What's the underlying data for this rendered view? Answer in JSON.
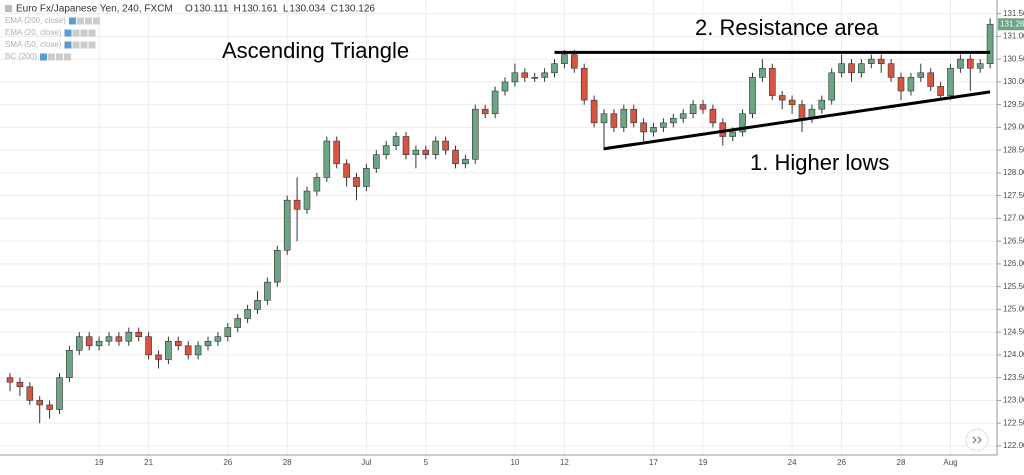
{
  "header": {
    "symbol": "Euro Fx/Japanese Yen, 240, FXCM",
    "ohlc": [
      {
        "label": "O",
        "value": 130.111
      },
      {
        "label": "H",
        "value": 130.161
      },
      {
        "label": "L",
        "value": 130.034
      },
      {
        "label": "C",
        "value": 130.126
      }
    ],
    "indicators": [
      "EMA (200, close)",
      "EMA (20, close)",
      "SMA (50, close)",
      "BC (200)"
    ]
  },
  "chart_data": {
    "type": "candlestick",
    "annotations": [
      "Ascending Triangle",
      "2. Resistance area",
      "1. Higher lows"
    ],
    "trend_lines": [
      {
        "x": [
          55,
          99
        ],
        "y": [
          130.65,
          130.65
        ]
      },
      {
        "x": [
          60,
          99
        ],
        "y": [
          128.53,
          129.78
        ]
      }
    ],
    "categories": [
      null,
      null,
      null,
      null,
      null,
      null,
      null,
      null,
      null,
      "19",
      null,
      null,
      null,
      null,
      "21",
      null,
      null,
      null,
      null,
      null,
      null,
      null,
      "26",
      null,
      null,
      null,
      null,
      null,
      "28",
      null,
      null,
      null,
      null,
      null,
      null,
      null,
      "Jul",
      null,
      null,
      null,
      null,
      null,
      "5",
      null,
      null,
      null,
      null,
      null,
      null,
      null,
      null,
      "10",
      null,
      null,
      null,
      null,
      "12",
      null,
      null,
      null,
      null,
      null,
      null,
      null,
      null,
      "17",
      null,
      null,
      null,
      null,
      "19",
      null,
      null,
      null,
      null,
      null,
      null,
      null,
      null,
      "24",
      null,
      null,
      null,
      null,
      "26",
      null,
      null,
      null,
      null,
      null,
      "28",
      null,
      null,
      null,
      null,
      "Aug",
      null,
      null,
      null,
      null
    ],
    "open": [
      123.5,
      123.4,
      123.3,
      123.0,
      122.9,
      122.8,
      123.5,
      124.1,
      124.4,
      124.2,
      124.3,
      124.4,
      124.3,
      124.5,
      124.4,
      124.0,
      123.9,
      124.3,
      124.2,
      124.0,
      124.2,
      124.3,
      124.4,
      124.6,
      124.8,
      125.0,
      125.2,
      125.6,
      126.3,
      127.4,
      127.2,
      127.6,
      127.9,
      128.7,
      128.2,
      127.9,
      127.7,
      128.1,
      128.4,
      128.6,
      128.8,
      128.4,
      128.5,
      128.4,
      128.7,
      128.5,
      128.2,
      128.3,
      129.4,
      129.3,
      129.8,
      130.0,
      130.2,
      130.1,
      130.1,
      130.2,
      130.4,
      130.6,
      130.3,
      129.6,
      129.1,
      129.3,
      129.0,
      129.4,
      129.1,
      128.9,
      129.0,
      129.1,
      129.2,
      129.3,
      129.5,
      129.4,
      129.1,
      128.8,
      128.9,
      129.3,
      130.1,
      130.3,
      129.7,
      129.6,
      129.5,
      129.2,
      129.4,
      129.6,
      130.2,
      130.4,
      130.2,
      130.4,
      130.5,
      130.4,
      130.1,
      129.8,
      130.1,
      130.2,
      129.9,
      129.7,
      130.3,
      130.5,
      130.3,
      130.4
    ],
    "high": [
      123.6,
      123.5,
      123.4,
      123.1,
      123.0,
      123.6,
      124.2,
      124.5,
      124.5,
      124.4,
      124.5,
      124.5,
      124.6,
      124.6,
      124.5,
      124.1,
      124.4,
      124.4,
      124.3,
      124.3,
      124.4,
      124.5,
      124.7,
      124.9,
      125.1,
      125.4,
      125.7,
      126.4,
      127.5,
      127.9,
      127.7,
      128.0,
      128.8,
      128.8,
      128.3,
      128.0,
      128.2,
      128.5,
      128.7,
      128.9,
      128.9,
      128.6,
      128.6,
      128.8,
      128.8,
      128.6,
      128.4,
      129.5,
      129.5,
      129.9,
      130.1,
      130.4,
      130.3,
      130.2,
      130.3,
      130.5,
      130.7,
      130.7,
      130.4,
      129.7,
      129.4,
      129.4,
      129.5,
      129.5,
      129.2,
      129.1,
      129.2,
      129.3,
      129.4,
      129.6,
      129.6,
      129.5,
      129.2,
      129.0,
      129.4,
      130.2,
      130.5,
      130.4,
      129.8,
      129.7,
      129.6,
      129.5,
      129.7,
      130.3,
      130.6,
      130.5,
      130.5,
      130.6,
      130.6,
      130.5,
      130.2,
      130.2,
      130.4,
      130.3,
      130.0,
      130.4,
      130.6,
      130.6,
      130.5,
      131.4
    ],
    "low": [
      123.2,
      123.1,
      122.9,
      122.5,
      122.6,
      122.7,
      123.4,
      124.0,
      124.1,
      124.1,
      124.2,
      124.2,
      124.2,
      124.3,
      123.9,
      123.7,
      123.8,
      124.1,
      123.9,
      123.9,
      124.1,
      124.2,
      124.3,
      124.5,
      124.7,
      124.9,
      125.1,
      125.5,
      126.2,
      126.5,
      127.1,
      127.5,
      127.8,
      128.1,
      127.7,
      127.4,
      127.6,
      128.0,
      128.3,
      128.5,
      128.3,
      128.1,
      128.3,
      128.3,
      128.4,
      128.1,
      128.1,
      128.2,
      129.2,
      129.2,
      129.7,
      129.9,
      130.0,
      130.0,
      130.0,
      130.1,
      130.3,
      130.2,
      129.5,
      129.0,
      128.5,
      128.9,
      128.9,
      129.0,
      128.7,
      128.8,
      128.9,
      129.0,
      129.1,
      129.2,
      129.3,
      129.0,
      128.6,
      128.7,
      128.8,
      129.2,
      130.0,
      129.6,
      129.4,
      129.3,
      128.9,
      129.1,
      129.3,
      129.5,
      130.1,
      130.0,
      130.1,
      130.3,
      130.2,
      130.0,
      129.6,
      129.7,
      130.0,
      129.8,
      129.6,
      129.6,
      130.2,
      129.8,
      130.2,
      130.3
    ],
    "close": [
      123.4,
      123.3,
      123.0,
      122.9,
      122.8,
      123.5,
      124.1,
      124.4,
      124.2,
      124.3,
      124.4,
      124.3,
      124.5,
      124.4,
      124.0,
      123.9,
      124.3,
      124.2,
      124.0,
      124.2,
      124.3,
      124.4,
      124.6,
      124.8,
      125.0,
      125.2,
      125.6,
      126.3,
      127.4,
      127.2,
      127.6,
      127.9,
      128.7,
      128.2,
      127.9,
      127.7,
      128.1,
      128.4,
      128.6,
      128.8,
      128.4,
      128.5,
      128.4,
      128.7,
      128.5,
      128.2,
      128.3,
      129.4,
      129.3,
      129.8,
      130.0,
      130.2,
      130.1,
      130.1,
      130.2,
      130.4,
      130.6,
      130.3,
      129.6,
      129.1,
      129.3,
      129.0,
      129.4,
      129.1,
      128.9,
      129.0,
      129.1,
      129.2,
      129.3,
      129.5,
      129.4,
      129.1,
      128.8,
      128.9,
      129.3,
      130.1,
      130.3,
      129.7,
      129.6,
      129.5,
      129.2,
      129.4,
      129.6,
      130.2,
      130.4,
      130.2,
      130.4,
      130.5,
      130.4,
      130.1,
      129.8,
      130.1,
      130.2,
      129.9,
      129.7,
      130.3,
      130.5,
      130.3,
      130.4,
      131.267
    ],
    "up_color": "#6ba583",
    "down_color": "#d75442",
    "ylim": [
      121.8,
      131.8
    ],
    "yticks": [
      {
        "value": 122,
        "label": "122.000"
      },
      {
        "value": 122.5,
        "label": "122.500"
      },
      {
        "value": 123,
        "label": "123.000"
      },
      {
        "value": 123.5,
        "label": "123.500"
      },
      {
        "value": 124,
        "label": "124.000"
      },
      {
        "value": 124.5,
        "label": "124.500"
      },
      {
        "value": 125,
        "label": "125.000"
      },
      {
        "value": 125.5,
        "label": "125.500"
      },
      {
        "value": 126,
        "label": "126.000"
      },
      {
        "value": 126.5,
        "label": "126.500"
      },
      {
        "value": 127,
        "label": "127.000"
      },
      {
        "value": 127.5,
        "label": "127.500"
      },
      {
        "value": 128,
        "label": "128.000"
      },
      {
        "value": 128.5,
        "label": "128.500"
      },
      {
        "value": 129,
        "label": "129.000"
      },
      {
        "value": 129.5,
        "label": "129.500"
      },
      {
        "value": 130,
        "label": "130.000"
      },
      {
        "value": 130.5,
        "label": "130.500"
      },
      {
        "value": 131,
        "label": "131.000"
      },
      {
        "value": 131.5,
        "label": "131.500"
      }
    ],
    "grid": true
  }
}
